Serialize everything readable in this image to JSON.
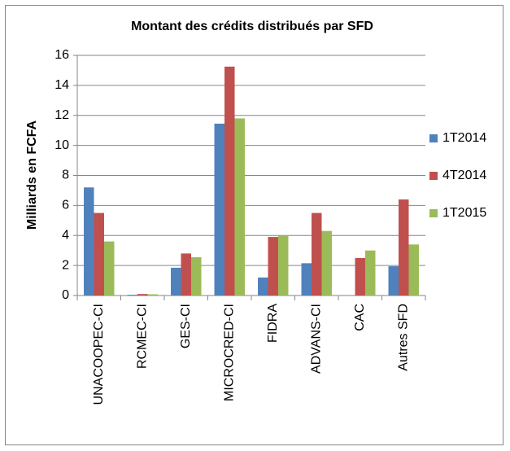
{
  "chart_data": {
    "type": "bar",
    "title": "Montant des crédits distribués par SFD",
    "y_label": "Milliards en FCFA",
    "categories": [
      "UNACOOPEC-CI",
      "RCMEC-CI",
      "GES-CI",
      "MICROCRED-CI",
      "FIDRA",
      "ADVANS-CI",
      "CAC",
      "Autres SFD"
    ],
    "series": [
      {
        "name": "1T2014",
        "color": "#4f81bd",
        "values": [
          7.2,
          0.05,
          1.85,
          11.45,
          1.2,
          2.15,
          0,
          1.95
        ]
      },
      {
        "name": "4T2014",
        "color": "#c0504d",
        "values": [
          5.5,
          0.1,
          2.8,
          15.25,
          3.9,
          5.5,
          2.5,
          6.4
        ]
      },
      {
        "name": "1T2015",
        "color": "#9bbb59",
        "values": [
          3.6,
          0.08,
          2.55,
          11.8,
          4.0,
          4.3,
          3.0,
          3.4
        ]
      }
    ],
    "ylim": [
      0,
      16
    ],
    "yticks": [
      0,
      2,
      4,
      6,
      8,
      10,
      12,
      14,
      16
    ],
    "grid": true,
    "legend": "right"
  }
}
